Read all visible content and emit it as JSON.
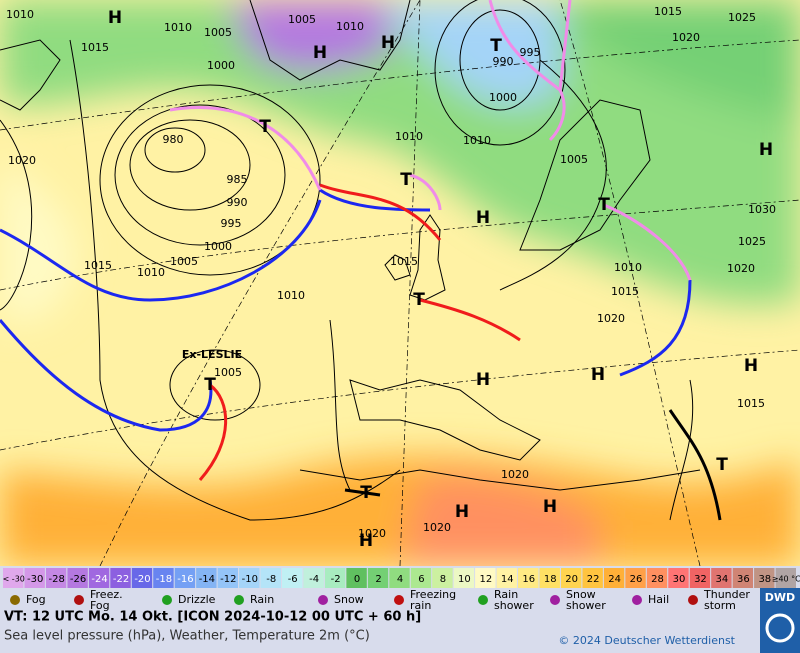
{
  "map": {
    "pressure_labels": [
      "1010",
      "1015",
      "1010",
      "1005",
      "1005",
      "1010",
      "1000",
      "980",
      "985",
      "990",
      "995",
      "1000",
      "1005",
      "1010",
      "1015",
      "1020",
      "1010",
      "1010",
      "1010",
      "1000",
      "990",
      "995",
      "1005",
      "1015",
      "1020",
      "1025",
      "1030",
      "1025",
      "1020",
      "1010",
      "1015",
      "1020",
      "1015",
      "1005",
      "1020",
      "1020",
      "1020",
      "1015"
    ],
    "high_labels": [
      "H",
      "H",
      "H",
      "H",
      "H",
      "H",
      "H",
      "H",
      "H",
      "H",
      "H"
    ],
    "low_labels": [
      "T",
      "T",
      "T",
      "T",
      "T",
      "T",
      "T",
      "T"
    ],
    "storm_name": "Ex-LESLIE"
  },
  "legend": {
    "temperature_scale": [
      {
        "label": "< -30",
        "color": "#e0a8ec"
      },
      {
        "label": "-30",
        "color": "#d498e8"
      },
      {
        "label": "-28",
        "color": "#c488e4"
      },
      {
        "label": "-26",
        "color": "#b478e0"
      },
      {
        "label": "-24",
        "color": "#a068e0"
      },
      {
        "label": "-22",
        "color": "#8c60e0"
      },
      {
        "label": "-20",
        "color": "#6868e8"
      },
      {
        "label": "-18",
        "color": "#6884f0"
      },
      {
        "label": "-16",
        "color": "#74a0f4"
      },
      {
        "label": "-14",
        "color": "#84b4f4"
      },
      {
        "label": "-12",
        "color": "#94c4f8"
      },
      {
        "label": "-10",
        "color": "#a4d4f8"
      },
      {
        "label": "-8",
        "color": "#b4e4f8"
      },
      {
        "label": "-6",
        "color": "#c0f0f4"
      },
      {
        "label": "-4",
        "color": "#c0f0dc"
      },
      {
        "label": "-2",
        "color": "#a8ecc0"
      },
      {
        "label": "0",
        "color": "#60c060"
      },
      {
        "label": "2",
        "color": "#74d074"
      },
      {
        "label": "4",
        "color": "#90dc80"
      },
      {
        "label": "6",
        "color": "#ace890"
      },
      {
        "label": "8",
        "color": "#ccf0a0"
      },
      {
        "label": "10",
        "color": "#ecf8c4"
      },
      {
        "label": "12",
        "color": "#fffac4"
      },
      {
        "label": "14",
        "color": "#fff2a4"
      },
      {
        "label": "16",
        "color": "#ffea84"
      },
      {
        "label": "18",
        "color": "#ffe064"
      },
      {
        "label": "20",
        "color": "#ffd450"
      },
      {
        "label": "22",
        "color": "#ffc440"
      },
      {
        "label": "24",
        "color": "#ffb038"
      },
      {
        "label": "26",
        "color": "#ffa048"
      },
      {
        "label": "28",
        "color": "#ff9060"
      },
      {
        "label": "30",
        "color": "#ff7474"
      },
      {
        "label": "32",
        "color": "#f06464"
      },
      {
        "label": "34",
        "color": "#e07470"
      },
      {
        "label": "36",
        "color": "#d08474"
      },
      {
        "label": "38",
        "color": "#c09484"
      },
      {
        "label": "≥40 °C",
        "color": "#b0a4a4"
      }
    ],
    "weather_items": [
      "Fog",
      "Freez. Fog",
      "Drizzle",
      "Rain",
      "Snow",
      "Freezing rain",
      "Rain shower",
      "Snow shower",
      "Hail",
      "Thunder storm"
    ]
  },
  "footer": {
    "valid_time": "VT: 12 UTC Mo.  14 Okt. [ICON 2024-10-12  00 UTC + 60 h]",
    "description": "Sea level pressure (hPa), Weather, Temperature 2m (°C)",
    "copyright": "© 2024 Deutscher Wetterdienst",
    "logo": "DWD"
  }
}
